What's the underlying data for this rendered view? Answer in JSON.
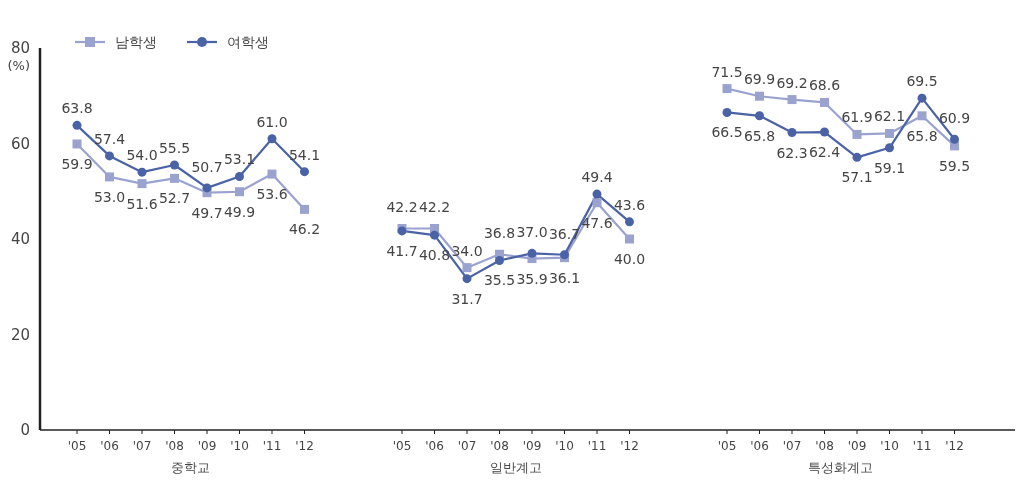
{
  "chart_data": [
    {
      "type": "line",
      "xlabel": "중학교",
      "ylabel": "(%)",
      "categories": [
        "'05",
        "'06",
        "'07",
        "'08",
        "'09",
        "'10",
        "'11",
        "'12"
      ],
      "ylim": [
        0,
        80
      ],
      "yticks": [
        0,
        20,
        40,
        60,
        80
      ],
      "legend": "top left",
      "series": [
        {
          "name": "남학생",
          "color": "#9aa3cf",
          "marker": "square",
          "values": [
            59.9,
            53.0,
            51.6,
            52.7,
            49.7,
            49.9,
            53.6,
            46.2
          ],
          "value_labels": [
            "59.9",
            "53.0",
            "51.6",
            "52.7",
            "49.7",
            "49.9",
            "53.6",
            "46.2"
          ]
        },
        {
          "name": "여학생",
          "color": "#4a62a6",
          "marker": "circle",
          "values": [
            63.8,
            57.4,
            54.0,
            55.5,
            50.7,
            53.1,
            61.0,
            54.1
          ],
          "value_labels": [
            "63.8",
            "57.4",
            "54.0",
            "55.5",
            "50.7",
            "53.1",
            "61.0",
            "54.1"
          ]
        }
      ]
    },
    {
      "type": "line",
      "xlabel": "일반계고",
      "categories": [
        "'05",
        "'06",
        "'07",
        "'08",
        "'09",
        "'10",
        "'11",
        "'12"
      ],
      "ylim": [
        0,
        80
      ],
      "tick_labels": "x",
      "series": [
        {
          "color": "#9aa3cf",
          "marker": "square",
          "values": [
            42.2,
            42.2,
            34.0,
            36.8,
            35.9,
            36.1,
            47.6,
            40.0
          ],
          "value_labels": [
            "42.2",
            "42.2",
            "34.0",
            "36.8",
            "35.9",
            "36.1",
            "47.6",
            "40.0"
          ]
        },
        {
          "color": "#4a62a6",
          "marker": "circle",
          "values": [
            41.7,
            40.8,
            31.7,
            35.5,
            37.0,
            36.7,
            49.4,
            43.6
          ],
          "value_labels": [
            "41.7",
            "40.8",
            "31.7",
            "35.5",
            "37.0",
            "36.7",
            "49.4",
            "43.6"
          ]
        }
      ]
    },
    {
      "type": "line",
      "xlabel": "특성화계고",
      "categories": [
        "'05",
        "'06",
        "'07",
        "'08",
        "'09",
        "'10",
        "'11",
        "'12"
      ],
      "ylim": [
        0,
        80
      ],
      "tick_labels": "x",
      "series": [
        {
          "color": "#9aa3cf",
          "marker": "square",
          "values": [
            71.5,
            69.9,
            69.2,
            68.6,
            61.9,
            62.1,
            65.8,
            59.5
          ],
          "value_labels": [
            "71.5",
            "69.9",
            "69.2",
            "68.6",
            "61.9",
            "62.1",
            "65.8",
            "59.5"
          ]
        },
        {
          "color": "#4a62a6",
          "marker": "circle",
          "values": [
            66.5,
            65.8,
            62.3,
            62.4,
            57.1,
            59.1,
            69.5,
            60.9
          ],
          "value_labels": [
            "66.5",
            "65.8",
            "62.3",
            "62.4",
            "57.1",
            "59.1",
            "69.5",
            "60.9"
          ]
        }
      ]
    }
  ]
}
